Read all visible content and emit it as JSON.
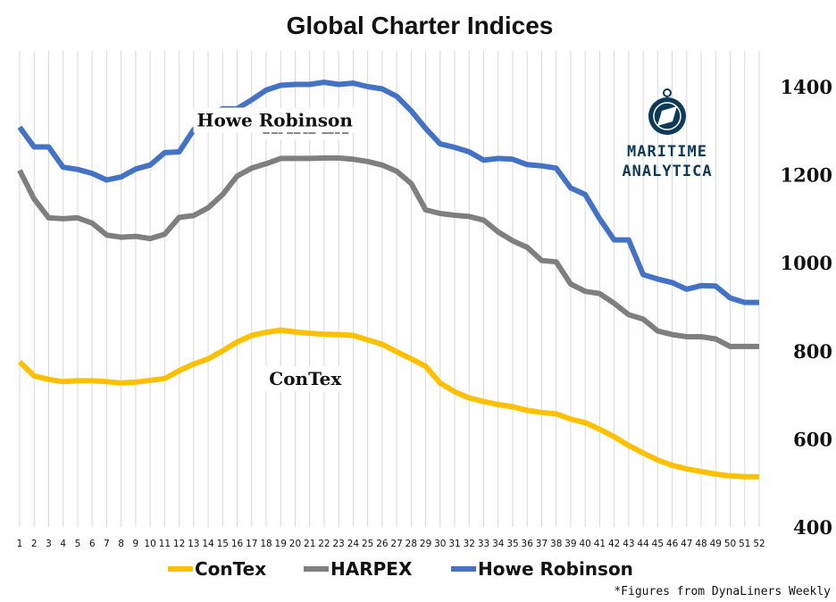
{
  "chart_data": {
    "type": "line",
    "title": "Global Charter Indices",
    "xlabel": "",
    "ylabel": "",
    "ylim": [
      400,
      1400
    ],
    "y_ticks": [
      400,
      600,
      800,
      1000,
      1200,
      1400
    ],
    "categories": [
      "1",
      "2",
      "3",
      "4",
      "5",
      "6",
      "7",
      "8",
      "9",
      "10",
      "11",
      "12",
      "13",
      "14",
      "15",
      "16",
      "17",
      "18",
      "19",
      "20",
      "21",
      "22",
      "23",
      "24",
      "25",
      "26",
      "27",
      "28",
      "29",
      "30",
      "31",
      "32",
      "33",
      "34",
      "35",
      "36",
      "37",
      "38",
      "39",
      "40",
      "41",
      "42",
      "43",
      "44",
      "45",
      "46",
      "47",
      "48",
      "49",
      "50",
      "51",
      "52"
    ],
    "series": [
      {
        "name": "ConTex",
        "color": "#ffc000",
        "label": "ConTex",
        "values": [
          775,
          743,
          735,
          730,
          732,
          732,
          730,
          727,
          729,
          733,
          737,
          755,
          770,
          782,
          800,
          820,
          835,
          842,
          847,
          843,
          840,
          838,
          837,
          835,
          825,
          815,
          798,
          782,
          765,
          727,
          707,
          693,
          685,
          678,
          673,
          665,
          660,
          657,
          645,
          637,
          622,
          605,
          585,
          568,
          552,
          540,
          532,
          526,
          520,
          516,
          514,
          514
        ]
      },
      {
        "name": "HARPEX",
        "color": "#7f7f7f",
        "label": "HARPEX",
        "values": [
          1210,
          1145,
          1102,
          1100,
          1102,
          1090,
          1063,
          1058,
          1060,
          1055,
          1065,
          1103,
          1107,
          1125,
          1155,
          1197,
          1215,
          1225,
          1237,
          1237,
          1237,
          1238,
          1238,
          1235,
          1230,
          1222,
          1208,
          1180,
          1120,
          1112,
          1108,
          1105,
          1097,
          1070,
          1050,
          1035,
          1005,
          1002,
          952,
          935,
          930,
          908,
          882,
          872,
          845,
          837,
          832,
          832,
          827,
          810,
          810,
          810
        ]
      },
      {
        "name": "Howe Robinson",
        "color": "#4472c4",
        "label": "Howe Robinson",
        "values": [
          1308,
          1263,
          1263,
          1217,
          1212,
          1203,
          1188,
          1195,
          1213,
          1222,
          1250,
          1252,
          1302,
          1335,
          1350,
          1350,
          1370,
          1392,
          1403,
          1405,
          1405,
          1410,
          1405,
          1408,
          1400,
          1395,
          1378,
          1345,
          1305,
          1270,
          1262,
          1252,
          1233,
          1237,
          1235,
          1223,
          1220,
          1215,
          1170,
          1155,
          1100,
          1052,
          1052,
          973,
          963,
          955,
          940,
          948,
          947,
          920,
          910,
          910
        ]
      }
    ],
    "legend": {
      "position": "bottom",
      "entries": [
        "ConTex",
        "HARPEX",
        "Howe Robinson"
      ]
    },
    "grid": "vertical"
  },
  "logo": {
    "line1": "MARITIME",
    "line2": "ANALYTICA"
  },
  "footnote": "*Figures from DynaLiners Weekly",
  "colors": {
    "background": "#ffffff",
    "grid": "#d9d9d9",
    "logo": "#0d3a57"
  }
}
